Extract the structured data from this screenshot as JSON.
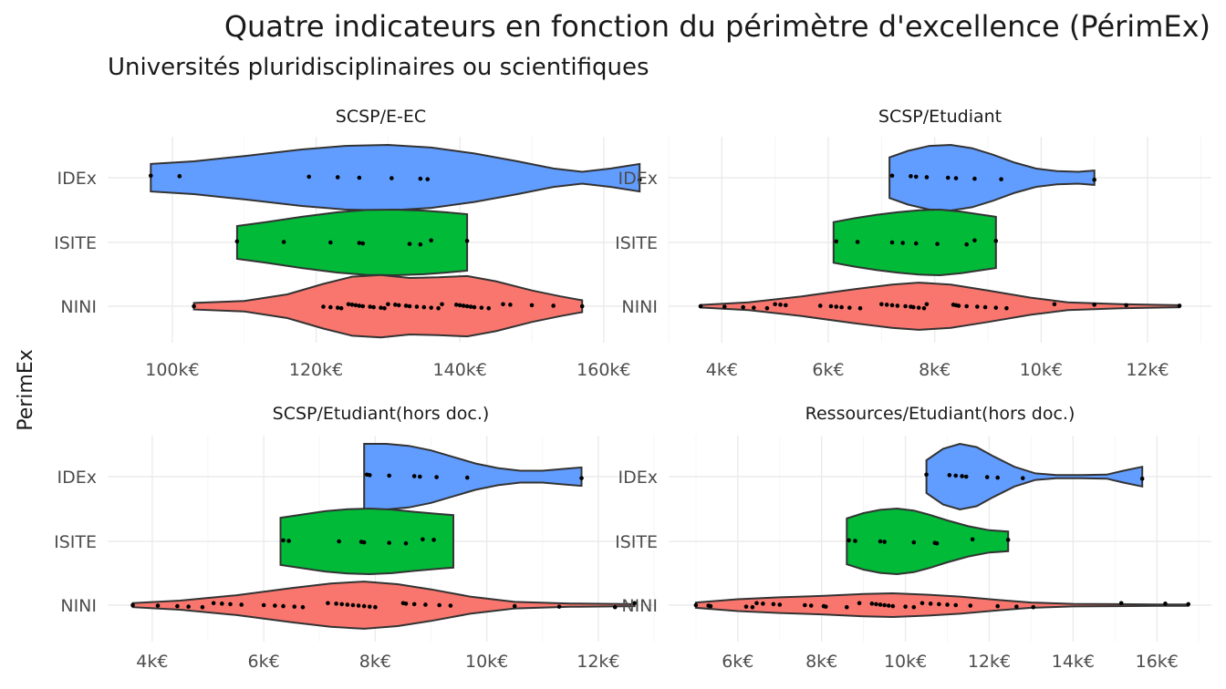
{
  "title": "Quatre indicateurs en fonction du périmètre d'excellence (PérimEx)",
  "subtitle": "Universités pluridisciplinaires ou scientifiques",
  "y_axis_label": "PerimEx",
  "colors": {
    "IDEx": "#619CFF",
    "ISITE": "#00BA38",
    "NINI": "#F8766D"
  },
  "chart_data": [
    {
      "type": "violin",
      "title": "SCSP/E-EC",
      "categories": [
        "IDEx",
        "ISITE",
        "NINI"
      ],
      "x_ticks": [
        100,
        120,
        140,
        160
      ],
      "x_tick_labels": [
        "100k€",
        "120k€",
        "140k€",
        "160k€"
      ],
      "xlim": [
        91,
        167
      ],
      "series": [
        {
          "category": "IDEx",
          "min": 97,
          "max": 165,
          "density": [
            [
              97,
              0.42
            ],
            [
              103,
              0.5
            ],
            [
              110,
              0.66
            ],
            [
              118,
              0.86
            ],
            [
              124,
              0.97
            ],
            [
              130,
              1.0
            ],
            [
              136,
              0.92
            ],
            [
              142,
              0.74
            ],
            [
              148,
              0.5
            ],
            [
              153,
              0.28
            ],
            [
              157,
              0.18
            ],
            [
              161,
              0.28
            ],
            [
              165,
              0.42
            ]
          ],
          "points": [
            97,
            101,
            119,
            123,
            126,
            130.5,
            134.5,
            135.5,
            165
          ]
        },
        {
          "category": "ISITE",
          "min": 109,
          "max": 141,
          "density": [
            [
              109,
              0.5
            ],
            [
              113,
              0.62
            ],
            [
              118,
              0.78
            ],
            [
              123,
              0.92
            ],
            [
              127,
              0.99
            ],
            [
              131,
              1.0
            ],
            [
              135,
              0.97
            ],
            [
              138,
              0.92
            ],
            [
              141,
              0.86
            ]
          ],
          "points": [
            109,
            115.5,
            122,
            126,
            126.5,
            133,
            134.5,
            136,
            141
          ]
        },
        {
          "category": "NINI",
          "min": 103,
          "max": 157,
          "density": [
            [
              103,
              0.1
            ],
            [
              110,
              0.16
            ],
            [
              116,
              0.36
            ],
            [
              121,
              0.68
            ],
            [
              125,
              0.9
            ],
            [
              129,
              0.95
            ],
            [
              133,
              0.86
            ],
            [
              137,
              0.88
            ],
            [
              141,
              0.92
            ],
            [
              145,
              0.76
            ],
            [
              150,
              0.48
            ],
            [
              154,
              0.3
            ],
            [
              157,
              0.18
            ]
          ],
          "points": [
            103,
            121,
            122,
            123,
            123.5,
            124.5,
            125,
            125.5,
            126,
            126.5,
            127.5,
            128,
            129,
            129.5,
            130,
            131,
            131.5,
            132.5,
            133,
            134,
            135,
            136,
            137,
            137.5,
            139.5,
            140,
            140.5,
            141,
            141.5,
            142,
            143,
            144,
            146,
            147,
            150,
            153,
            157
          ]
        }
      ]
    },
    {
      "type": "violin",
      "title": "SCSP/Etudiant",
      "categories": [
        "IDEx",
        "ISITE",
        "NINI"
      ],
      "x_ticks": [
        4,
        6,
        8,
        10,
        12
      ],
      "x_tick_labels": [
        "4k€",
        "6k€",
        "8k€",
        "10k€",
        "12k€"
      ],
      "xlim": [
        3.0,
        13.2
      ],
      "series": [
        {
          "category": "IDEx",
          "min": 7.15,
          "max": 11.0,
          "density": [
            [
              7.15,
              0.62
            ],
            [
              7.5,
              0.82
            ],
            [
              7.9,
              0.97
            ],
            [
              8.3,
              1.0
            ],
            [
              8.7,
              0.9
            ],
            [
              9.1,
              0.7
            ],
            [
              9.5,
              0.46
            ],
            [
              9.9,
              0.28
            ],
            [
              10.3,
              0.2
            ],
            [
              10.7,
              0.18
            ],
            [
              11.0,
              0.22
            ]
          ],
          "points": [
            7.2,
            7.55,
            7.65,
            7.85,
            8.25,
            8.4,
            8.75,
            9.25,
            11.0
          ]
        },
        {
          "category": "ISITE",
          "min": 6.1,
          "max": 9.15,
          "density": [
            [
              6.1,
              0.62
            ],
            [
              6.5,
              0.74
            ],
            [
              6.9,
              0.84
            ],
            [
              7.3,
              0.92
            ],
            [
              7.7,
              0.98
            ],
            [
              8.1,
              1.0
            ],
            [
              8.5,
              0.94
            ],
            [
              8.9,
              0.84
            ],
            [
              9.15,
              0.78
            ]
          ],
          "points": [
            6.15,
            6.55,
            7.2,
            7.4,
            7.65,
            8.05,
            8.6,
            8.75,
            9.15
          ]
        },
        {
          "category": "NINI",
          "min": 3.6,
          "max": 12.6,
          "density": [
            [
              3.6,
              0.04
            ],
            [
              4.5,
              0.12
            ],
            [
              5.5,
              0.3
            ],
            [
              6.5,
              0.52
            ],
            [
              7.2,
              0.66
            ],
            [
              7.7,
              0.72
            ],
            [
              8.3,
              0.66
            ],
            [
              9.0,
              0.48
            ],
            [
              9.8,
              0.26
            ],
            [
              10.5,
              0.12
            ],
            [
              11.5,
              0.06
            ],
            [
              12.6,
              0.03
            ]
          ],
          "points": [
            3.6,
            4.05,
            4.4,
            4.6,
            4.85,
            5.0,
            5.1,
            5.2,
            5.85,
            6.05,
            6.15,
            6.25,
            6.4,
            6.6,
            7.0,
            7.1,
            7.2,
            7.3,
            7.45,
            7.55,
            7.6,
            7.7,
            7.8,
            7.85,
            8.35,
            8.4,
            8.45,
            8.6,
            8.8,
            8.95,
            9.15,
            9.35,
            10.25,
            11.0,
            11.6,
            12.6
          ]
        }
      ]
    },
    {
      "type": "violin",
      "title": "SCSP/Etudiant(hors doc.)",
      "categories": [
        "IDEx",
        "ISITE",
        "NINI"
      ],
      "x_ticks": [
        4,
        6,
        8,
        10,
        12
      ],
      "x_tick_labels": [
        "4k€",
        "6k€",
        "8k€",
        "10k€",
        "12k€"
      ],
      "xlim": [
        3.2,
        13.0
      ],
      "series": [
        {
          "category": "IDEx",
          "min": 7.8,
          "max": 11.7,
          "density": [
            [
              7.8,
              1.0
            ],
            [
              8.2,
              1.0
            ],
            [
              8.6,
              0.94
            ],
            [
              9.0,
              0.8
            ],
            [
              9.4,
              0.6
            ],
            [
              9.8,
              0.4
            ],
            [
              10.2,
              0.26
            ],
            [
              10.6,
              0.18
            ],
            [
              11.0,
              0.18
            ],
            [
              11.4,
              0.24
            ],
            [
              11.7,
              0.28
            ]
          ],
          "points": [
            7.85,
            7.9,
            8.25,
            8.7,
            8.8,
            9.1,
            9.65,
            11.7
          ]
        },
        {
          "category": "ISITE",
          "min": 6.3,
          "max": 9.4,
          "density": [
            [
              6.3,
              0.72
            ],
            [
              6.7,
              0.82
            ],
            [
              7.1,
              0.92
            ],
            [
              7.5,
              0.98
            ],
            [
              7.9,
              1.0
            ],
            [
              8.3,
              0.97
            ],
            [
              8.7,
              0.9
            ],
            [
              9.1,
              0.84
            ],
            [
              9.4,
              0.8
            ]
          ],
          "points": [
            6.35,
            6.45,
            7.35,
            7.75,
            7.8,
            8.25,
            8.55,
            8.85,
            9.05
          ]
        },
        {
          "category": "NINI",
          "min": 3.65,
          "max": 12.65,
          "density": [
            [
              3.65,
              0.06
            ],
            [
              4.5,
              0.14
            ],
            [
              5.5,
              0.3
            ],
            [
              6.5,
              0.52
            ],
            [
              7.2,
              0.66
            ],
            [
              7.8,
              0.72
            ],
            [
              8.4,
              0.64
            ],
            [
              9.0,
              0.48
            ],
            [
              9.7,
              0.26
            ],
            [
              10.5,
              0.1
            ],
            [
              11.5,
              0.05
            ],
            [
              12.65,
              0.03
            ]
          ],
          "points": [
            3.65,
            4.1,
            4.45,
            4.65,
            4.9,
            5.1,
            5.25,
            5.4,
            5.6,
            6.0,
            6.2,
            6.35,
            6.55,
            6.7,
            7.15,
            7.3,
            7.4,
            7.5,
            7.6,
            7.7,
            7.8,
            7.9,
            8.0,
            8.5,
            8.55,
            8.7,
            8.9,
            9.15,
            9.35,
            10.5,
            11.3,
            12.3,
            12.65
          ]
        }
      ]
    },
    {
      "type": "violin",
      "title": "Ressources/Etudiant(hors doc.)",
      "categories": [
        "IDEx",
        "ISITE",
        "NINI"
      ],
      "x_ticks": [
        6,
        8,
        10,
        12,
        14,
        16
      ],
      "x_tick_labels": [
        "6k€",
        "8k€",
        "10k€",
        "12k€",
        "14k€",
        "16k€"
      ],
      "xlim": [
        4.35,
        17.3
      ],
      "series": [
        {
          "category": "IDEx",
          "min": 10.5,
          "max": 15.65,
          "density": [
            [
              10.5,
              0.5
            ],
            [
              10.9,
              0.85
            ],
            [
              11.3,
              1.0
            ],
            [
              11.7,
              0.9
            ],
            [
              12.1,
              0.62
            ],
            [
              12.6,
              0.3
            ],
            [
              13.1,
              0.1
            ],
            [
              13.6,
              0.05
            ],
            [
              14.2,
              0.05
            ],
            [
              14.8,
              0.06
            ],
            [
              15.2,
              0.18
            ],
            [
              15.65,
              0.3
            ]
          ],
          "points": [
            10.5,
            11.05,
            11.2,
            11.35,
            11.45,
            11.95,
            12.2,
            12.8,
            15.65
          ]
        },
        {
          "category": "ISITE",
          "min": 8.6,
          "max": 12.45,
          "density": [
            [
              8.6,
              0.7
            ],
            [
              9.0,
              0.86
            ],
            [
              9.4,
              0.96
            ],
            [
              9.8,
              1.0
            ],
            [
              10.2,
              0.94
            ],
            [
              10.6,
              0.8
            ],
            [
              11.0,
              0.64
            ],
            [
              11.5,
              0.46
            ],
            [
              12.0,
              0.34
            ],
            [
              12.45,
              0.3
            ]
          ],
          "points": [
            8.65,
            8.8,
            9.4,
            9.5,
            10.2,
            10.7,
            10.75,
            11.6,
            12.45
          ]
        },
        {
          "category": "NINI",
          "min": 5.0,
          "max": 16.75,
          "density": [
            [
              5.0,
              0.08
            ],
            [
              6.0,
              0.18
            ],
            [
              7.0,
              0.24
            ],
            [
              8.0,
              0.28
            ],
            [
              9.0,
              0.34
            ],
            [
              9.7,
              0.36
            ],
            [
              10.5,
              0.32
            ],
            [
              11.3,
              0.26
            ],
            [
              12.2,
              0.16
            ],
            [
              13.0,
              0.08
            ],
            [
              14.0,
              0.04
            ],
            [
              15.0,
              0.03
            ],
            [
              16.0,
              0.02
            ],
            [
              16.75,
              0.02
            ]
          ],
          "points": [
            5.0,
            5.3,
            5.35,
            6.2,
            6.35,
            6.45,
            6.6,
            6.85,
            7.0,
            7.6,
            7.75,
            8.05,
            8.1,
            8.6,
            8.9,
            9.2,
            9.3,
            9.4,
            9.5,
            9.6,
            9.7,
            10.0,
            10.2,
            10.4,
            10.6,
            10.8,
            11.0,
            11.2,
            11.55,
            12.2,
            12.65,
            13.05,
            15.15,
            16.2,
            16.75
          ]
        }
      ]
    }
  ]
}
